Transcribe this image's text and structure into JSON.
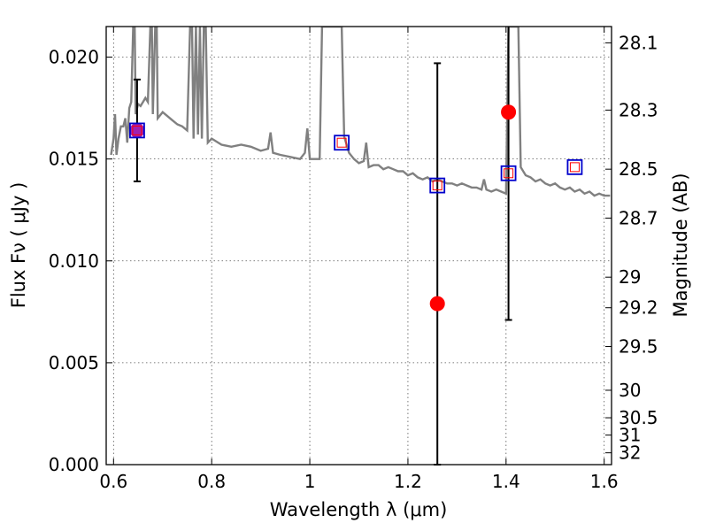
{
  "chart_data": {
    "type": "scatter",
    "title": "",
    "xlabel": "Wavelength  λ (μm)",
    "ylabel": "Flux  Fν  ( μJy )",
    "ylabel_right": "Magnitude (AB)",
    "xlim": [
      0.585,
      1.615
    ],
    "ylim": [
      0.0,
      0.0215
    ],
    "grid": true,
    "x_ticks": [
      0.6,
      0.8,
      1.0,
      1.2,
      1.4,
      1.6
    ],
    "x_tick_labels": [
      "0.6",
      "0.8",
      "1",
      "1.2",
      "1.4",
      "1.6"
    ],
    "y_ticks": [
      0.0,
      0.005,
      0.01,
      0.015,
      0.02
    ],
    "y_tick_labels": [
      "0.000",
      "0.005",
      "0.010",
      "0.015",
      "0.020"
    ],
    "right_ticks": [
      {
        "label": "28.1",
        "flux": 0.0207
      },
      {
        "label": "28.3",
        "flux": 0.0174
      },
      {
        "label": "28.5",
        "flux": 0.0145
      },
      {
        "label": "28.7",
        "flux": 0.0121
      },
      {
        "label": "29",
        "flux": 0.0092
      },
      {
        "label": "29.2",
        "flux": 0.0077
      },
      {
        "label": "29.5",
        "flux": 0.0058
      },
      {
        "label": "30",
        "flux": 0.00365
      },
      {
        "label": "30.5",
        "flux": 0.0023
      },
      {
        "label": "31",
        "flux": 0.00145
      },
      {
        "label": "32",
        "flux": 0.00058
      }
    ],
    "colors": {
      "model": "#808080",
      "observed": "#ff0000",
      "observed_overlap": "#a020b0",
      "synthetic": "#0000cc",
      "errorbar": "#000000",
      "grid": "#555555"
    },
    "model_spectrum": [
      [
        0.595,
        0.0152
      ],
      [
        0.6,
        0.016
      ],
      [
        0.603,
        0.0172
      ],
      [
        0.606,
        0.0152
      ],
      [
        0.61,
        0.016
      ],
      [
        0.615,
        0.0166
      ],
      [
        0.62,
        0.0166
      ],
      [
        0.624,
        0.017
      ],
      [
        0.628,
        0.0158
      ],
      [
        0.632,
        0.0175
      ],
      [
        0.636,
        0.0178
      ],
      [
        0.64,
        0.0215
      ],
      [
        0.643,
        0.0215
      ],
      [
        0.645,
        0.0172
      ],
      [
        0.65,
        0.0177
      ],
      [
        0.655,
        0.0176
      ],
      [
        0.66,
        0.0178
      ],
      [
        0.665,
        0.018
      ],
      [
        0.67,
        0.0178
      ],
      [
        0.675,
        0.0215
      ],
      [
        0.678,
        0.0215
      ],
      [
        0.68,
        0.0172
      ],
      [
        0.685,
        0.0215
      ],
      [
        0.688,
        0.0215
      ],
      [
        0.69,
        0.017
      ],
      [
        0.7,
        0.0173
      ],
      [
        0.71,
        0.0171
      ],
      [
        0.72,
        0.0169
      ],
      [
        0.73,
        0.0167
      ],
      [
        0.74,
        0.0166
      ],
      [
        0.75,
        0.0164
      ],
      [
        0.756,
        0.0215
      ],
      [
        0.76,
        0.0215
      ],
      [
        0.763,
        0.016
      ],
      [
        0.768,
        0.0215
      ],
      [
        0.772,
        0.0162
      ],
      [
        0.776,
        0.0215
      ],
      [
        0.78,
        0.016
      ],
      [
        0.784,
        0.0215
      ],
      [
        0.788,
        0.0215
      ],
      [
        0.792,
        0.0158
      ],
      [
        0.8,
        0.016
      ],
      [
        0.82,
        0.0157
      ],
      [
        0.84,
        0.0156
      ],
      [
        0.86,
        0.0157
      ],
      [
        0.88,
        0.0156
      ],
      [
        0.9,
        0.0154
      ],
      [
        0.915,
        0.0155
      ],
      [
        0.92,
        0.0163
      ],
      [
        0.925,
        0.0153
      ],
      [
        0.94,
        0.0152
      ],
      [
        0.96,
        0.0151
      ],
      [
        0.98,
        0.015
      ],
      [
        0.99,
        0.0153
      ],
      [
        0.995,
        0.0165
      ],
      [
        1.0,
        0.015
      ],
      [
        1.01,
        0.015
      ],
      [
        1.02,
        0.015
      ],
      [
        1.025,
        0.0215
      ],
      [
        1.03,
        0.0215
      ],
      [
        1.04,
        0.0215
      ],
      [
        1.05,
        0.0215
      ],
      [
        1.06,
        0.0215
      ],
      [
        1.065,
        0.0215
      ],
      [
        1.07,
        0.0161
      ],
      [
        1.08,
        0.0153
      ],
      [
        1.09,
        0.015
      ],
      [
        1.1,
        0.0148
      ],
      [
        1.11,
        0.0149
      ],
      [
        1.115,
        0.0158
      ],
      [
        1.12,
        0.0146
      ],
      [
        1.13,
        0.0147
      ],
      [
        1.14,
        0.0147
      ],
      [
        1.15,
        0.0145
      ],
      [
        1.16,
        0.0146
      ],
      [
        1.17,
        0.0145
      ],
      [
        1.18,
        0.0144
      ],
      [
        1.19,
        0.0144
      ],
      [
        1.2,
        0.0142
      ],
      [
        1.21,
        0.0143
      ],
      [
        1.22,
        0.0141
      ],
      [
        1.23,
        0.014
      ],
      [
        1.24,
        0.0141
      ],
      [
        1.25,
        0.0139
      ],
      [
        1.26,
        0.014
      ],
      [
        1.27,
        0.0139
      ],
      [
        1.28,
        0.0138
      ],
      [
        1.29,
        0.0138
      ],
      [
        1.3,
        0.0137
      ],
      [
        1.31,
        0.0138
      ],
      [
        1.32,
        0.0137
      ],
      [
        1.33,
        0.0136
      ],
      [
        1.34,
        0.0136
      ],
      [
        1.35,
        0.0135
      ],
      [
        1.355,
        0.014
      ],
      [
        1.36,
        0.0135
      ],
      [
        1.37,
        0.0134
      ],
      [
        1.38,
        0.0135
      ],
      [
        1.39,
        0.0134
      ],
      [
        1.4,
        0.0133
      ],
      [
        1.405,
        0.0215
      ],
      [
        1.41,
        0.0215
      ],
      [
        1.42,
        0.0215
      ],
      [
        1.425,
        0.0215
      ],
      [
        1.43,
        0.0146
      ],
      [
        1.44,
        0.0142
      ],
      [
        1.45,
        0.0141
      ],
      [
        1.46,
        0.0139
      ],
      [
        1.47,
        0.014
      ],
      [
        1.48,
        0.0138
      ],
      [
        1.49,
        0.0137
      ],
      [
        1.5,
        0.0138
      ],
      [
        1.51,
        0.0136
      ],
      [
        1.52,
        0.0135
      ],
      [
        1.53,
        0.0136
      ],
      [
        1.54,
        0.0134
      ],
      [
        1.55,
        0.0135
      ],
      [
        1.56,
        0.0133
      ],
      [
        1.57,
        0.0134
      ],
      [
        1.58,
        0.0132
      ],
      [
        1.59,
        0.0133
      ],
      [
        1.6,
        0.0132
      ],
      [
        1.612,
        0.0132
      ]
    ],
    "observed_points": [
      {
        "x": 0.648,
        "y": 0.0164,
        "err": 0.0025
      },
      {
        "x": 1.26,
        "y": 0.0079,
        "err": 0.0118
      },
      {
        "x": 1.405,
        "y": 0.0173,
        "err": 0.0102
      }
    ],
    "synthetic_points": [
      {
        "x": 0.648,
        "y": 0.0164
      },
      {
        "x": 1.065,
        "y": 0.0158
      },
      {
        "x": 1.26,
        "y": 0.0137
      },
      {
        "x": 1.405,
        "y": 0.0143
      },
      {
        "x": 1.54,
        "y": 0.0146
      }
    ]
  }
}
